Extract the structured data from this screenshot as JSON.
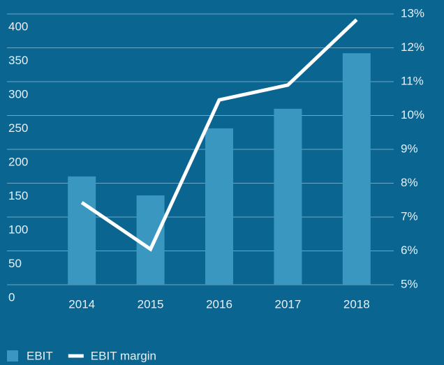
{
  "chart_data": {
    "type": "bar",
    "categories": [
      "2014",
      "2015",
      "2016",
      "2017",
      "2018"
    ],
    "series": [
      {
        "name": "EBIT",
        "type": "bar",
        "color": "#3a97c0",
        "values": [
          160,
          132,
          231,
          260,
          342
        ]
      },
      {
        "name": "EBIT margin",
        "type": "line",
        "axis": "y2",
        "color": "#ffffff",
        "values": [
          7.43,
          6.05,
          10.46,
          10.9,
          12.83
        ]
      }
    ],
    "ylim": [
      0,
      400
    ],
    "yticks": [
      0,
      50,
      100,
      150,
      200,
      250,
      300,
      350,
      400
    ],
    "y2lim": [
      5,
      13
    ],
    "y2ticks": [
      {
        "value": 5,
        "label": "5%"
      },
      {
        "value": 6,
        "label": "6%"
      },
      {
        "value": 7,
        "label": "7%"
      },
      {
        "value": 8,
        "label": "8%"
      },
      {
        "value": 9,
        "label": "9%"
      },
      {
        "value": 10,
        "label": "10%"
      },
      {
        "value": 11,
        "label": "11%"
      },
      {
        "value": 12,
        "label": "12%"
      },
      {
        "value": 13,
        "label": "13%"
      }
    ],
    "grid": true,
    "legend": "bottom-left"
  }
}
